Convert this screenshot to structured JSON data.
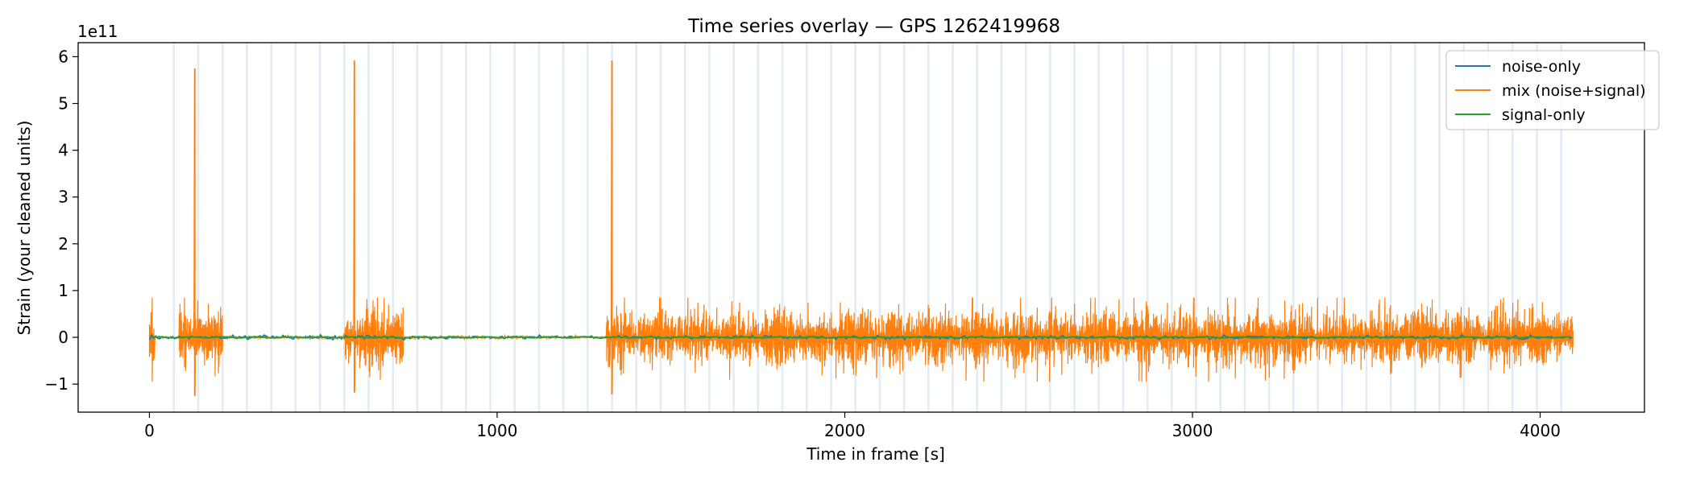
{
  "chart_data": {
    "type": "line",
    "title": "Time series overlay — GPS 1262419968",
    "xlabel": "Time in frame [s]",
    "ylabel": "Strain (your cleaned units)",
    "y_offset_text": "1e11",
    "xlim": [
      -205,
      4300
    ],
    "ylim": [
      -1.6,
      6.3
    ],
    "xticks": [
      0,
      1000,
      2000,
      3000,
      4000
    ],
    "yticks": [
      -1,
      0,
      1,
      2,
      3,
      4,
      5,
      6
    ],
    "ytick_labels": [
      "−1",
      "0",
      "1",
      "2",
      "3",
      "4",
      "5",
      "6"
    ],
    "legend_position": "upper right",
    "vertical_bands_every_s": 70,
    "vertical_band_color": "#c6dbef",
    "series": [
      {
        "name": "noise-only",
        "color": "#1f77b4"
      },
      {
        "name": "mix (noise+signal)",
        "color": "#ff7f0e"
      },
      {
        "name": "signal-only",
        "color": "#2ca02c"
      }
    ],
    "segments": [
      {
        "x": [
          0,
          15
        ],
        "amp": 0.45
      },
      {
        "x": [
          85,
          210
        ],
        "amp": 0.4
      },
      {
        "x": [
          560,
          730
        ],
        "amp": 0.4
      },
      {
        "x": [
          1315,
          4095
        ],
        "amp": 0.35
      }
    ],
    "spikes": [
      {
        "x": 130,
        "y": 5.75,
        "min": -1.25
      },
      {
        "x": 590,
        "y": 5.92,
        "min": -1.18
      },
      {
        "x": 1330,
        "y": 5.92,
        "min": -1.22
      }
    ]
  }
}
